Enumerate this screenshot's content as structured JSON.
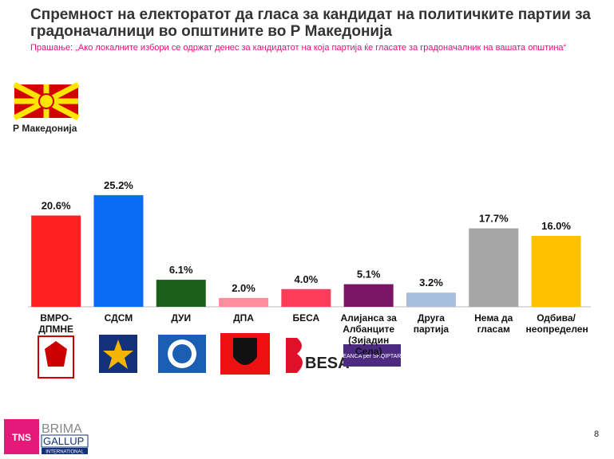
{
  "chart_data": {
    "type": "bar",
    "title": "Спремност на електоратот  да гласа за кандидат на политичките партии за градоначалници во општините во Р Македонија",
    "subtitle": "Прашање: „Ако локалните избори се одржат денес за кандидатот на која партија ќе гласате за градоначалник на вашата општина“",
    "region_label": "Р Македонија",
    "categories": [
      "ВМРО-ДПМНЕ",
      "СДСМ",
      "ДУИ",
      "ДПА",
      "БЕСА",
      "Алијанса за Албанците (Зијадин Села)",
      "Друга партија",
      "Нема да гласам",
      "Одбива/ неопределен"
    ],
    "values": [
      20.6,
      25.2,
      6.1,
      2.0,
      4.0,
      5.1,
      3.2,
      17.7,
      16.0
    ],
    "value_labels": [
      "20.6%",
      "25.2%",
      "6.1%",
      "2.0%",
      "4.0%",
      "5.1%",
      "3.2%",
      "17.7%",
      "16.0%"
    ],
    "colors": [
      "#ff2020",
      "#0a6cf5",
      "#1d5e1d",
      "#ff8d9b",
      "#ff3c5a",
      "#7a1565",
      "#a7bfdc",
      "#a6a6a6",
      "#ffc000"
    ],
    "page_number": "8",
    "logo": {
      "tns": "TNS",
      "brima": "BRIMA",
      "gallup": "GALLUP",
      "international": "INTERNATIONAL"
    }
  }
}
